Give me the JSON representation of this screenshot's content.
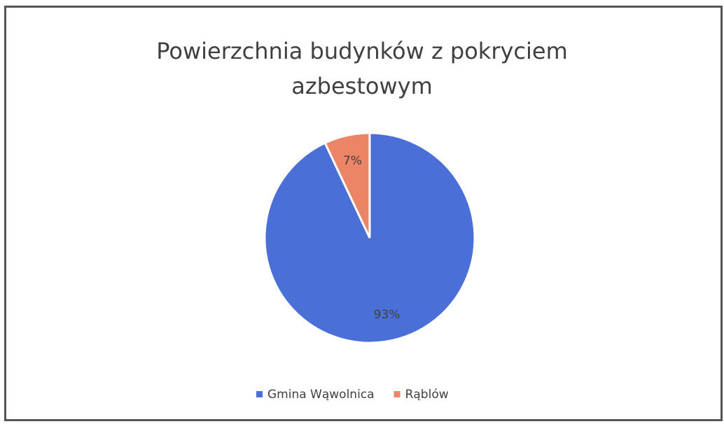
{
  "chart_data": {
    "type": "pie",
    "title": "Powierzchnia budynków z pokryciem azbestowym",
    "categories": [
      "Gmina Wąwolnica",
      "Rąblów"
    ],
    "values": [
      93,
      7
    ],
    "value_labels": [
      "93%",
      "7%"
    ],
    "colors": [
      "#4a6fd6",
      "#ec8466"
    ],
    "legend": "bottom"
  }
}
